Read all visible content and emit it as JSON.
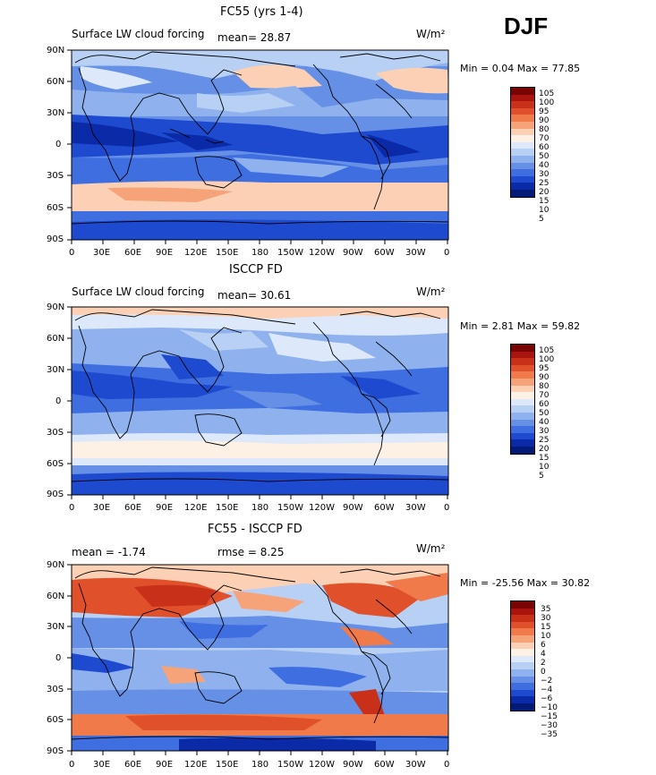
{
  "season": "DJF",
  "units": "W/m²",
  "lat_labels": [
    "90N",
    "60N",
    "30N",
    "0",
    "30S",
    "60S",
    "90S"
  ],
  "lon_labels": [
    "0",
    "30E",
    "60E",
    "90E",
    "120E",
    "150E",
    "180",
    "150W",
    "120W",
    "90W",
    "60W",
    "30W",
    "0"
  ],
  "panels": [
    {
      "title": "FC55 (yrs 1-4)",
      "left_note": "Surface LW cloud forcing",
      "mid_note": "mean=   28.87",
      "minmax": "Min =    0.04 Max =   77.85",
      "colorbar_labels": [
        "105",
        "100",
        "95",
        "90",
        "80",
        "70",
        "60",
        "50",
        "40",
        "30",
        "25",
        "20",
        "15",
        "10",
        "5"
      ]
    },
    {
      "title": "ISCCP FD",
      "left_note": "Surface LW cloud forcing",
      "mid_note": "mean=   30.61",
      "minmax": "Min =    2.81 Max =   59.82",
      "colorbar_labels": [
        "105",
        "100",
        "95",
        "90",
        "80",
        "70",
        "60",
        "50",
        "40",
        "30",
        "25",
        "20",
        "15",
        "10",
        "5"
      ]
    },
    {
      "title": "FC55 - ISCCP FD",
      "left_note": "mean =   -1.74",
      "mid_note": "rmse =    8.25",
      "minmax": "Min = -25.56 Max =   30.82",
      "colorbar_labels": [
        "35",
        "30",
        "15",
        "10",
        "6",
        "4",
        "2",
        "0",
        "−2",
        "−4",
        "−6",
        "−10",
        "−15",
        "−30",
        "−35"
      ]
    }
  ],
  "colors": {
    "abs_scale": [
      "#7a0403",
      "#a9140f",
      "#c8301a",
      "#e0502a",
      "#f07a4a",
      "#f6a37a",
      "#fbd0b4",
      "#fdf0e4",
      "#dde9fa",
      "#b8d0f4",
      "#8fb2ee",
      "#6690e6",
      "#3e6ee0",
      "#1e4ad0",
      "#0a2aa8",
      "#041a78"
    ],
    "diff_scale": [
      "#7a0403",
      "#a9140f",
      "#c8301a",
      "#e0502a",
      "#f07a4a",
      "#f6a37a",
      "#fbd0b4",
      "#fdf0e4",
      "#dde9fa",
      "#b8d0f4",
      "#8fb2ee",
      "#6690e6",
      "#3e6ee0",
      "#1e4ad0",
      "#0a2aa8",
      "#041a78"
    ]
  }
}
